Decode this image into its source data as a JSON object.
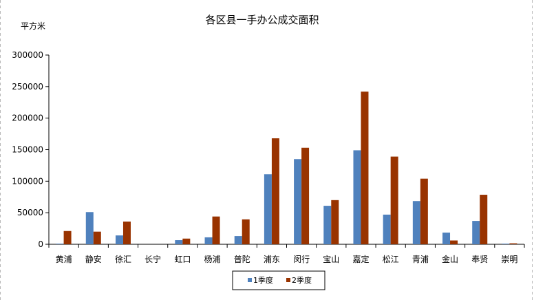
{
  "chart_data": {
    "type": "bar",
    "title": "各区县一手办公成交面积",
    "ylabel": "平方米",
    "xlabel": "",
    "ylim": [
      0,
      300000
    ],
    "yticks": [
      0,
      50000,
      100000,
      150000,
      200000,
      250000,
      300000
    ],
    "ytick_labels": [
      "0",
      "50000",
      "100000",
      "150000",
      "200000",
      "250000",
      "300000"
    ],
    "grid": false,
    "legend_position": "bottom",
    "categories": [
      "黄浦",
      "静安",
      "徐汇",
      "长宁",
      "虹口",
      "杨浦",
      "普陀",
      "浦东",
      "闵行",
      "宝山",
      "嘉定",
      "松江",
      "青浦",
      "金山",
      "奉贤",
      "崇明"
    ],
    "series": [
      {
        "name": "1季度",
        "color": "#4f81bd",
        "values": [
          1000,
          51000,
          14000,
          0,
          6500,
          11000,
          13000,
          111000,
          135000,
          61000,
          149000,
          47000,
          68500,
          18500,
          37000,
          1000
        ]
      },
      {
        "name": "2季度",
        "color": "#993300",
        "values": [
          21000,
          20000,
          36000,
          0,
          9000,
          44000,
          39500,
          168000,
          153000,
          70000,
          242000,
          139000,
          104000,
          6000,
          78500,
          1500
        ]
      }
    ]
  }
}
